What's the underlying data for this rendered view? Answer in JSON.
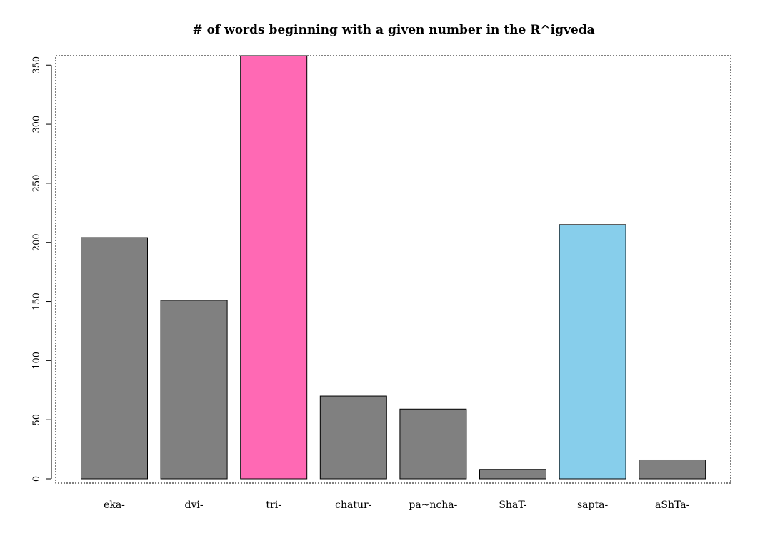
{
  "chart_data": {
    "type": "bar",
    "title": "# of words beginning with a given number in the R^igveda",
    "xlabel": "",
    "ylabel": "",
    "categories": [
      "eka-",
      "dvi-",
      "tri-",
      "chatur-",
      "pa~ncha-",
      "ShaT-",
      "sapta-",
      "aShTa-"
    ],
    "values": [
      204,
      151,
      358,
      70,
      59,
      8,
      215,
      16
    ],
    "colors": [
      "#808080",
      "#808080",
      "#FF69B4",
      "#808080",
      "#808080",
      "#808080",
      "#87CEEB",
      "#808080"
    ],
    "ylim": [
      0,
      358
    ],
    "yticks": [
      0,
      50,
      100,
      150,
      200,
      250,
      300,
      350
    ],
    "grid": false,
    "legend": "none",
    "box": "dotted"
  }
}
